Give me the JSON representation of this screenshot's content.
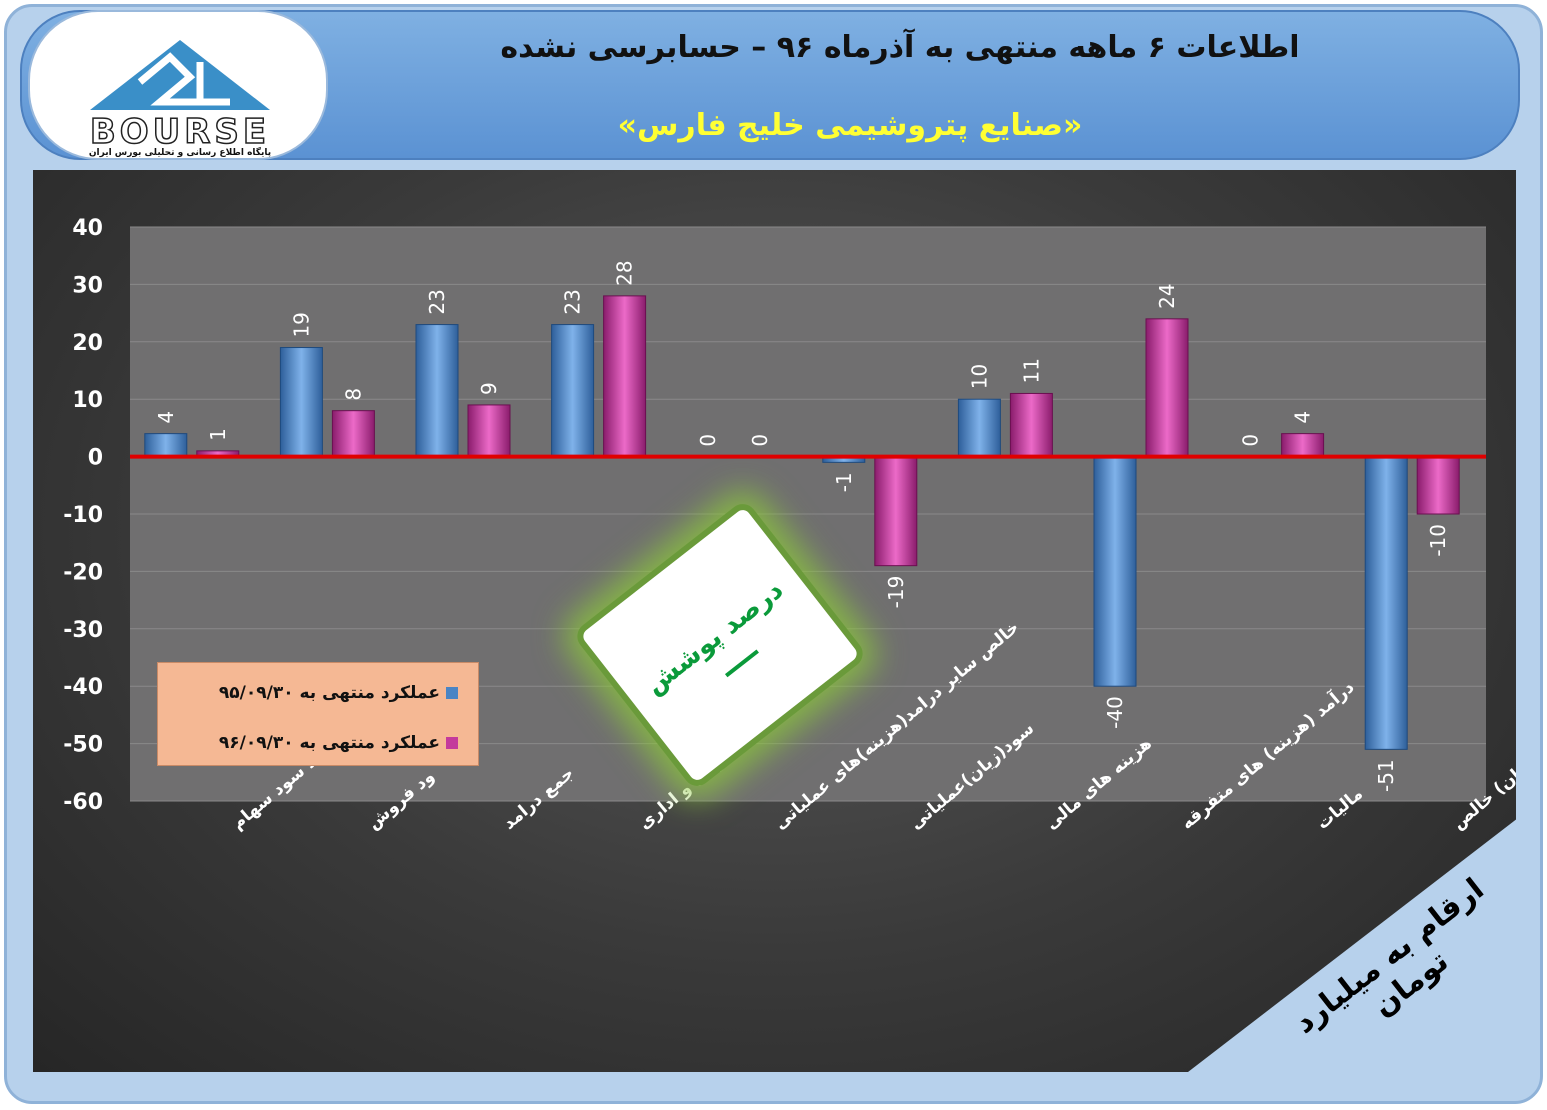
{
  "header": {
    "title": "اطلاعات ۶ ماهه منتهی به آذرماه ۹۶ – حسابرسی نشده",
    "subtitle": "«صنایع پتروشیمی خلیج فارس»"
  },
  "logo": {
    "word": "BOURSE",
    "tagline": "پایگاه اطلاع رسانی و تحلیلی بورس ایران"
  },
  "note": {
    "label": "درصد پوشش",
    "value": "–"
  },
  "units": "ارقام به میلیارد تومان",
  "colors": {
    "series1": "#4a84c4",
    "series2": "#c43a9c",
    "zero_line": "#e00000",
    "plot_bg": "#706f70"
  },
  "chart_data": {
    "type": "bar",
    "ylim": [
      -60,
      40
    ],
    "yticks": [
      40,
      30,
      20,
      10,
      0,
      -10,
      -20,
      -30,
      -40,
      -50,
      -60
    ],
    "categories": [
      "درآمد سود سهام",
      "ود فروش",
      "جمع درامد",
      "هزینه عمومی و اداری",
      "خالص سایر درامد(هزینه)های عملیاتی",
      "سود(زیان)عملیاتی",
      "هزینه های مالی",
      "درآمد (هزینه) های متفرقه",
      "مالیات",
      "سود(زیان) خالص"
    ],
    "series": [
      {
        "name": "عملکرد منتهی به ۹۵/۰۹/۳۰",
        "values": [
          4,
          19,
          23,
          23,
          0,
          -1,
          10,
          -40,
          0,
          -51
        ]
      },
      {
        "name": "عملکرد منتهی به ۹۶/۰۹/۳۰",
        "values": [
          1,
          8,
          9,
          28,
          0,
          -19,
          11,
          24,
          4,
          -10
        ]
      }
    ],
    "legend_position": "bottom-left",
    "grid": true
  }
}
